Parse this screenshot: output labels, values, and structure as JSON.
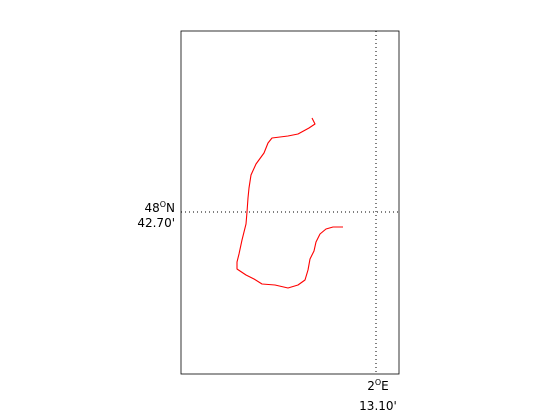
{
  "map": {
    "lat_label": {
      "deg": "48",
      "sup": "O",
      "hemi": "N",
      "min": "42.70'"
    },
    "lon_label": {
      "deg": "2",
      "sup": "O",
      "hemi": "E",
      "min": "13.10'"
    },
    "track_color": "#ff0000",
    "grid_style": "dotted",
    "frame_color": "#000000"
  }
}
